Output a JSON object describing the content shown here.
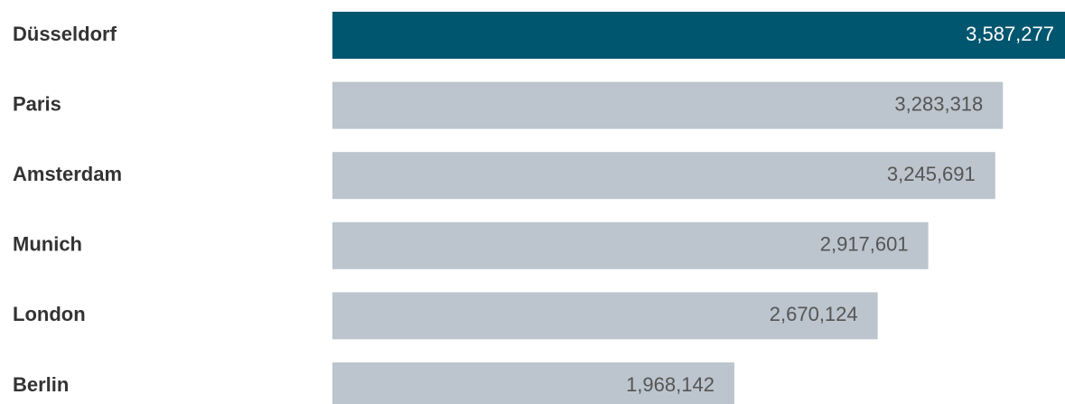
{
  "chart_data": {
    "type": "hbar",
    "categories": [
      "Düsseldorf",
      "Paris",
      "Amsterdam",
      "Munich",
      "London",
      "Berlin"
    ],
    "values": [
      3587277,
      3283318,
      3245691,
      2917601,
      2670124,
      1968142
    ],
    "value_labels": [
      "3,587,277",
      "3,283,318",
      "3,245,691",
      "2,917,601",
      "2,670,124",
      "1,968,142"
    ],
    "colors": [
      "#00566f",
      "#bcc5cd",
      "#bcc5cd",
      "#bcc5cd",
      "#bcc5cd",
      "#bcc5cd"
    ]
  }
}
